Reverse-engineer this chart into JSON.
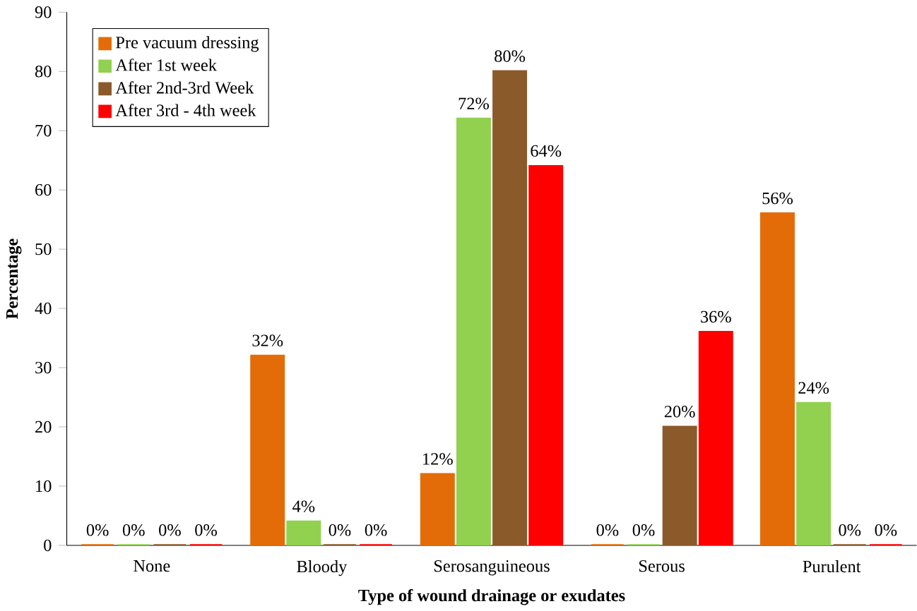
{
  "chart_data": {
    "type": "bar",
    "xlabel": "Type of wound drainage or exudates",
    "ylabel": "Percentage",
    "categories": [
      "None",
      "Bloody",
      "Serosanguineous",
      "Serous",
      "Purulent"
    ],
    "series": [
      {
        "name": "Pre vacuum dressing",
        "color": "#e36c09",
        "values": [
          0,
          32,
          12,
          0,
          56
        ],
        "value_labels": [
          "0%",
          "32%",
          "12%",
          "0%",
          "56%"
        ]
      },
      {
        "name": "After 1st week",
        "color": "#92d050",
        "values": [
          0,
          4,
          72,
          0,
          24
        ],
        "value_labels": [
          "0%",
          "4%",
          "72%",
          "0%",
          "24%"
        ]
      },
      {
        "name": "After 2nd-3rd Week",
        "color": "#8b5a2b",
        "values": [
          0,
          0,
          80,
          20,
          0
        ],
        "value_labels": [
          "0%",
          "0%",
          "80%",
          "20%",
          "0%"
        ]
      },
      {
        "name": "After 3rd - 4th week",
        "color": "#ff0000",
        "values": [
          0,
          0,
          64,
          36,
          0
        ],
        "value_labels": [
          "0%",
          "0%",
          "64%",
          "36%",
          "0%"
        ]
      }
    ],
    "ylim": [
      0,
      90
    ],
    "yticks": [
      0,
      10,
      20,
      30,
      40,
      50,
      60,
      70,
      80,
      90
    ],
    "grid": false,
    "legend": "top left"
  }
}
